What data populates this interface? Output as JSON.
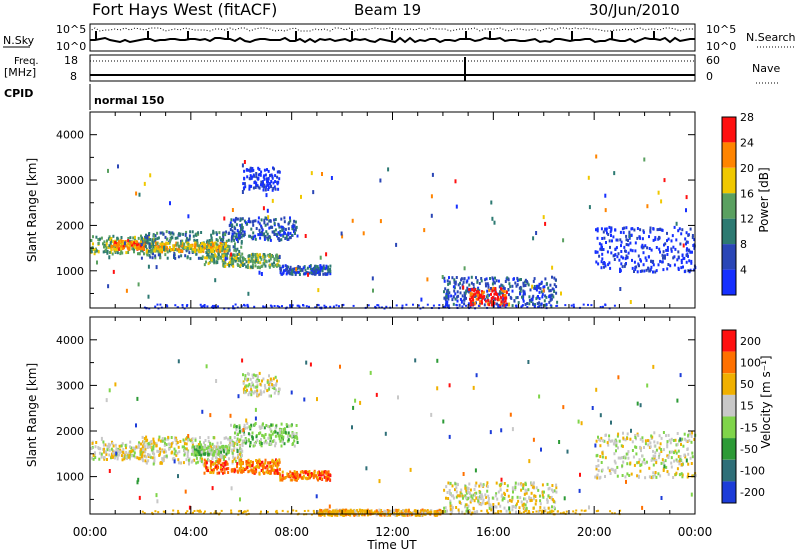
{
  "header": {
    "radar": "Fort Hays West (fitACF)",
    "beam": "Beam 19",
    "date": "30/Jun/2010"
  },
  "noise_panel": {
    "left_label": "N.Sky",
    "right_label": "N.Search",
    "left_ticks": [
      "10^5",
      "10^0"
    ],
    "right_ticks": [
      "10^5",
      "10^0"
    ]
  },
  "freq_panel": {
    "left_label_1": "Freq.",
    "left_label_2": "[MHz]",
    "right_label": "Nave",
    "left_ticks": [
      "18",
      "8"
    ],
    "right_ticks": [
      "60",
      "0"
    ]
  },
  "cpid_panel": {
    "label": "CPID",
    "program": "normal 150"
  },
  "chart_data": [
    {
      "type": "heatmap",
      "panel": "power",
      "ylabel": "Slant Range [km]",
      "xlabel": "",
      "ylim": [
        180,
        4500
      ],
      "y_ticks": [
        1000,
        2000,
        3000,
        4000
      ],
      "x_tick_labels": [
        "00:00",
        "04:00",
        "08:00",
        "12:00",
        "16:00",
        "20:00",
        "00:00"
      ],
      "x_range_hours": [
        0,
        24
      ],
      "colorbar": {
        "label": "Power [dB]",
        "tick_labels": [
          "4",
          "8",
          "12",
          "16",
          "20",
          "24",
          "28"
        ],
        "colors": [
          "#1630ff",
          "#2a46b6",
          "#2d7a72",
          "#5aa060",
          "#f0c800",
          "#ff8400",
          "#ff1010"
        ]
      },
      "echo_regions": [
        {
          "t": [
            0.0,
            2.5
          ],
          "range": [
            1400,
            1800
          ],
          "level": 3
        },
        {
          "t": [
            0.8,
            2.2
          ],
          "range": [
            1500,
            1700
          ],
          "level": 5
        },
        {
          "t": [
            2.0,
            6.0
          ],
          "range": [
            1300,
            1900
          ],
          "level": 2
        },
        {
          "t": [
            2.5,
            5.5
          ],
          "range": [
            1450,
            1650
          ],
          "level": 4
        },
        {
          "t": [
            4.5,
            7.5
          ],
          "range": [
            1100,
            1400
          ],
          "level": 3
        },
        {
          "t": [
            5.5,
            8.2
          ],
          "range": [
            1700,
            2200
          ],
          "level": 1
        },
        {
          "t": [
            6.0,
            7.5
          ],
          "range": [
            2800,
            3300
          ],
          "level": 0
        },
        {
          "t": [
            7.5,
            9.5
          ],
          "range": [
            950,
            1150
          ],
          "level": 1
        },
        {
          "t": [
            14.0,
            18.5
          ],
          "range": [
            250,
            900
          ],
          "level": 1
        },
        {
          "t": [
            15.0,
            16.5
          ],
          "range": [
            250,
            650
          ],
          "level": 6
        },
        {
          "t": [
            20.0,
            24.0
          ],
          "range": [
            1000,
            2000
          ],
          "level": 0
        }
      ]
    },
    {
      "type": "heatmap",
      "panel": "velocity",
      "ylabel": "Slant Range [km]",
      "xlabel": "Time UT",
      "ylim": [
        180,
        4500
      ],
      "y_ticks": [
        1000,
        2000,
        3000,
        4000
      ],
      "x_tick_labels": [
        "00:00",
        "04:00",
        "08:00",
        "12:00",
        "16:00",
        "20:00",
        "00:00"
      ],
      "x_range_hours": [
        0,
        24
      ],
      "colorbar": {
        "label": "Velocity [m s⁻¹]",
        "tick_labels": [
          "200",
          "100",
          "50",
          "15",
          "-15",
          "-50",
          "-100",
          "-200"
        ],
        "colors": [
          "#1c3cd8",
          "#2f6f78",
          "#2c9a36",
          "#7fd44a",
          "#c8c8c8",
          "#f0b000",
          "#ff7000",
          "#ff1010"
        ]
      },
      "echo_regions": [
        {
          "t": [
            0.0,
            2.5
          ],
          "range": [
            1400,
            1800
          ],
          "level": 4
        },
        {
          "t": [
            2.0,
            6.0
          ],
          "range": [
            1300,
            1900
          ],
          "level": 4
        },
        {
          "t": [
            4.0,
            5.5
          ],
          "range": [
            1500,
            1700
          ],
          "level": 3
        },
        {
          "t": [
            4.5,
            7.5
          ],
          "range": [
            1100,
            1400
          ],
          "level": 6
        },
        {
          "t": [
            5.5,
            8.2
          ],
          "range": [
            1700,
            2200
          ],
          "level": 3
        },
        {
          "t": [
            6.0,
            7.5
          ],
          "range": [
            2800,
            3300
          ],
          "level": 4
        },
        {
          "t": [
            7.5,
            9.5
          ],
          "range": [
            950,
            1150
          ],
          "level": 6
        },
        {
          "t": [
            9.0,
            14.0
          ],
          "range": [
            180,
            300
          ],
          "level": 5
        },
        {
          "t": [
            14.0,
            18.5
          ],
          "range": [
            250,
            900
          ],
          "level": 4
        },
        {
          "t": [
            20.0,
            24.0
          ],
          "range": [
            1000,
            2000
          ],
          "level": 4
        }
      ]
    }
  ]
}
